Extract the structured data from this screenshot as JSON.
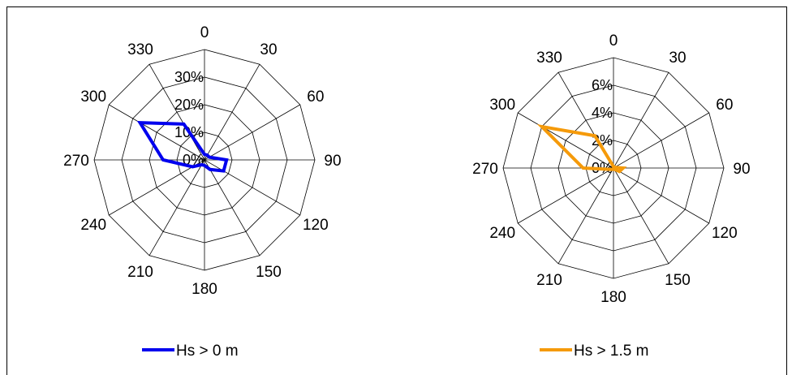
{
  "chart_data": [
    {
      "type": "radar",
      "direction_labels": [
        "0",
        "30",
        "60",
        "90",
        "120",
        "150",
        "180",
        "210",
        "240",
        "270",
        "300",
        "330"
      ],
      "directions": [
        0,
        30,
        60,
        90,
        120,
        150,
        180,
        210,
        240,
        270,
        300,
        330
      ],
      "rmax": 40,
      "radial_ticks": [
        0,
        10,
        20,
        30
      ],
      "radial_tick_labels": [
        "0%",
        "10%",
        "20%",
        "30%"
      ],
      "series": [
        {
          "name": "Hs > 0 m",
          "color": "#0000ee",
          "values": [
            2,
            2,
            2,
            8,
            8,
            4,
            2,
            2,
            5,
            15,
            27,
            15
          ]
        }
      ],
      "legend": {
        "placement": "bottom-center"
      }
    },
    {
      "type": "radar",
      "direction_labels": [
        "0",
        "30",
        "60",
        "90",
        "120",
        "150",
        "180",
        "210",
        "240",
        "270",
        "300",
        "330"
      ],
      "directions": [
        0,
        30,
        60,
        90,
        120,
        150,
        180,
        210,
        240,
        270,
        300,
        330
      ],
      "rmax": 8,
      "radial_ticks": [
        0,
        2,
        4,
        6
      ],
      "radial_tick_labels": [
        "0%",
        "2%",
        "4%",
        "6%"
      ],
      "series": [
        {
          "name": "Hs > 1.5 m",
          "color": "#f59a0a",
          "values": [
            0.1,
            0.1,
            0.1,
            0.7,
            0.5,
            0.1,
            0.1,
            0.1,
            0.2,
            2.2,
            6.0,
            2.7
          ]
        }
      ],
      "legend": {
        "placement": "bottom-center"
      }
    }
  ]
}
